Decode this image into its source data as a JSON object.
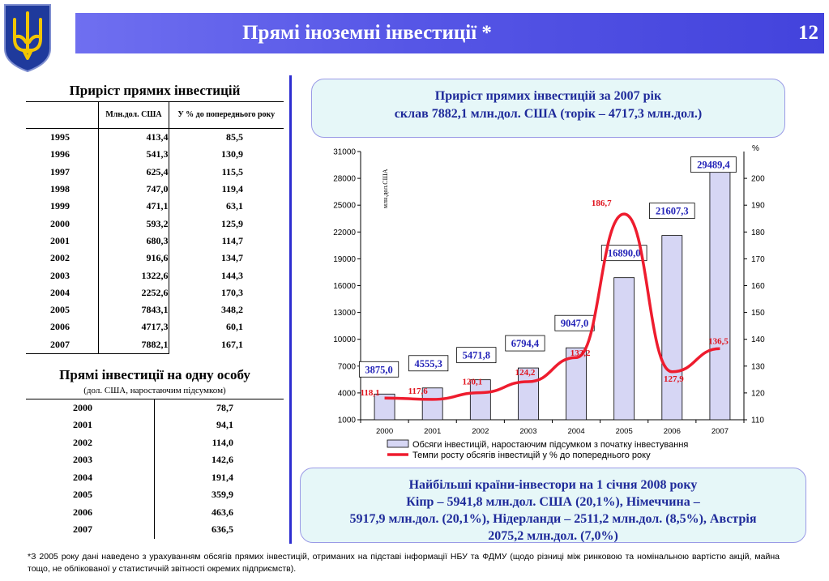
{
  "header": {
    "title": "Прямі іноземні інвестиції *",
    "page_number": "12"
  },
  "emblem": {
    "icon": "trident-icon",
    "colors": {
      "shield": "#1f3a9c",
      "trident": "#f2c500"
    }
  },
  "investment_growth_table": {
    "title": "Приріст прямих інвестицій",
    "col1_header": "Млн.дол. США",
    "col2_header": "У % до попереднього року",
    "rows": [
      {
        "year": "1995",
        "value": "413,4",
        "pct": "85,5"
      },
      {
        "year": "1996",
        "value": "541,3",
        "pct": "130,9"
      },
      {
        "year": "1997",
        "value": "625,4",
        "pct": "115,5"
      },
      {
        "year": "1998",
        "value": "747,0",
        "pct": "119,4"
      },
      {
        "year": "1999",
        "value": "471,1",
        "pct": "63,1"
      },
      {
        "year": "2000",
        "value": "593,2",
        "pct": "125,9"
      },
      {
        "year": "2001",
        "value": "680,3",
        "pct": "114,7"
      },
      {
        "year": "2002",
        "value": "916,6",
        "pct": "134,7"
      },
      {
        "year": "2003",
        "value": "1322,6",
        "pct": "144,3"
      },
      {
        "year": "2004",
        "value": "2252,6",
        "pct": "170,3"
      },
      {
        "year": "2005",
        "value": "7843,1",
        "pct": "348,2"
      },
      {
        "year": "2006",
        "value": "4717,3",
        "pct": "60,1"
      },
      {
        "year": "2007",
        "value": "7882,1",
        "pct": "167,1"
      }
    ]
  },
  "per_capita_table": {
    "title": "Прямі інвестиції на одну особу",
    "subtitle": "(дол. США, наростаючим підсумком)",
    "rows": [
      {
        "year": "2000",
        "value": "78,7"
      },
      {
        "year": "2001",
        "value": "94,1"
      },
      {
        "year": "2002",
        "value": "114,0"
      },
      {
        "year": "2003",
        "value": "142,6"
      },
      {
        "year": "2004",
        "value": "191,4"
      },
      {
        "year": "2005",
        "value": "359,9"
      },
      {
        "year": "2006",
        "value": "463,6"
      },
      {
        "year": "2007",
        "value": "636,5"
      }
    ]
  },
  "callout_top": {
    "line1": "Приріст прямих інвестицій за 2007 рік",
    "line2": "склав 7882,1 млн.дол. США (торік – 4717,3 млн.дол.)"
  },
  "callout_bottom": {
    "line1": "Найбільші країни-інвестори на 1 січня 2008 року",
    "line2": "Кіпр – 5941,8 млн.дол. США (20,1%), Німеччина –",
    "line3": "5917,9 млн.дол. (20,1%), Нідерланди – 2511,2 млн.дол. (8,5%), Австрія",
    "line4": "2075,2 млн.дол. (7,0%)"
  },
  "footnote": "*З 2005 року дані наведено з урахуванням обсягів прямих інвестицій, отриманих на підставі інформації НБУ та ФДМУ (щодо різниці між ринковою та номінальною вартістю акцій, майна тощо, не облікованої у статистичній звітності окремих підприємств).",
  "chart_data": {
    "type": "bar+line",
    "categories": [
      "2000",
      "2001",
      "2002",
      "2003",
      "2004",
      "2005",
      "2006",
      "2007"
    ],
    "series": [
      {
        "name": "Обсяги інвестицій, наростаючим підсумком з початку інвестування",
        "kind": "bar",
        "axis": "left",
        "values": [
          3875.0,
          4555.3,
          5471.8,
          6794.4,
          9047.0,
          16890.0,
          21607.3,
          29489.4
        ],
        "labels": [
          "3875,0",
          "4555,3",
          "5471,8",
          "6794,4",
          "9047,0",
          "16890,0",
          "21607,3",
          "29489,4"
        ],
        "color": "#d6d6f4",
        "label_color": "#2424b8"
      },
      {
        "name": "Темпи росту обсягів інвестицій у % до попереднього року",
        "kind": "line",
        "axis": "right",
        "values": [
          118.1,
          117.6,
          120.1,
          124.2,
          133.2,
          186.7,
          127.9,
          136.5
        ],
        "labels": [
          "118,1",
          "117,6",
          "120,1",
          "124,2",
          "133,2",
          "186,7",
          "127,9",
          "136,5"
        ],
        "color": "#ee1c2e"
      }
    ],
    "y_left": {
      "label": "млн.дол.США",
      "min": 1000,
      "max": 31000,
      "ticks": [
        "1000",
        "4000",
        "7000",
        "10000",
        "13000",
        "16000",
        "19000",
        "22000",
        "25000",
        "28000",
        "31000"
      ]
    },
    "y_right": {
      "label": "%",
      "min": 110,
      "max": 210,
      "ticks": [
        "110",
        "120",
        "130",
        "140",
        "150",
        "160",
        "170",
        "180",
        "190",
        "200"
      ]
    },
    "legend_position": "bottom"
  }
}
